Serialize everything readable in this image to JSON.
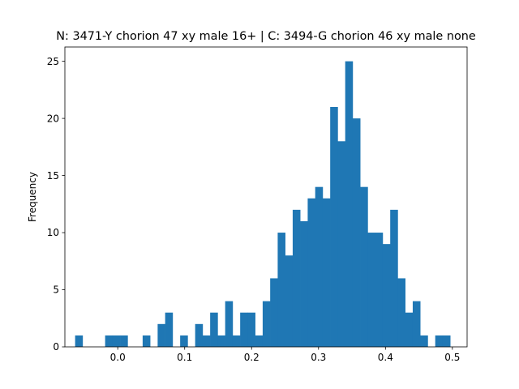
{
  "chart_data": {
    "type": "bar",
    "title": "N: 3471-Y chorion 47 xy male 16+ | C: 3494-G chorion 46 xy male none",
    "xlabel": "",
    "ylabel": "Frequency",
    "xlim": [
      -0.079,
      0.522
    ],
    "ylim": [
      0,
      26.25
    ],
    "xticks": [
      0.0,
      0.1,
      0.2,
      0.3,
      0.4,
      0.5
    ],
    "xtick_labels": [
      "0.0",
      "0.1",
      "0.2",
      "0.3",
      "0.4",
      "0.5"
    ],
    "yticks": [
      0,
      5,
      10,
      15,
      20,
      25
    ],
    "ytick_labels": [
      "0",
      "5",
      "10",
      "15",
      "20",
      "25"
    ],
    "bin_start": -0.0637,
    "bin_width": 0.01121,
    "values": [
      1,
      0,
      0,
      0,
      1,
      1,
      1,
      0,
      0,
      1,
      0,
      2,
      3,
      0,
      1,
      0,
      2,
      1,
      3,
      1,
      4,
      1,
      3,
      3,
      1,
      4,
      6,
      10,
      8,
      12,
      11,
      13,
      14,
      13,
      21,
      18,
      25,
      20,
      14,
      10,
      10,
      9,
      12,
      6,
      3,
      4,
      1,
      0,
      1,
      1
    ],
    "bar_color": "#1f77b4",
    "grid": false,
    "legend": "none"
  }
}
